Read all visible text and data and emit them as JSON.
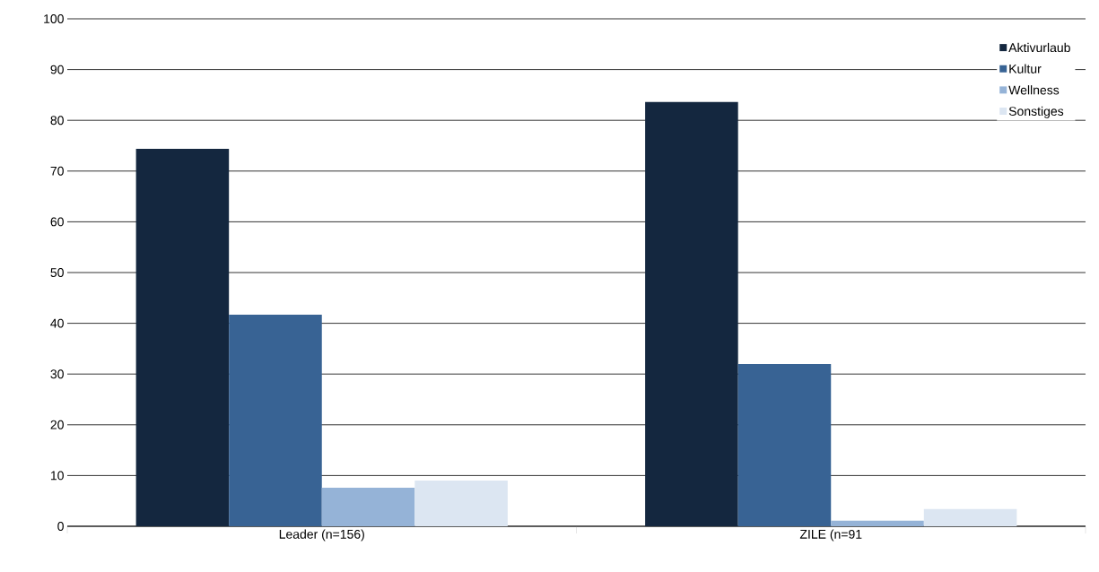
{
  "chart_data": {
    "type": "bar",
    "categories": [
      "Leader (n=156)",
      "ZILE (n=91"
    ],
    "series": [
      {
        "name": "Aktivurlaub",
        "color": "#14273f",
        "values": [
          74.4,
          83.6
        ]
      },
      {
        "name": "Kultur",
        "color": "#386394",
        "values": [
          41.7,
          32.0
        ]
      },
      {
        "name": "Wellness",
        "color": "#95b3d7",
        "values": [
          7.6,
          1.1
        ]
      },
      {
        "name": "Sonstiges",
        "color": "#dce6f2",
        "values": [
          9.0,
          3.4
        ]
      }
    ],
    "ylim": [
      0,
      100
    ],
    "yticks": [
      0,
      10,
      20,
      30,
      40,
      50,
      60,
      70,
      80,
      90,
      100
    ],
    "grid": "y",
    "legend": "top right"
  }
}
